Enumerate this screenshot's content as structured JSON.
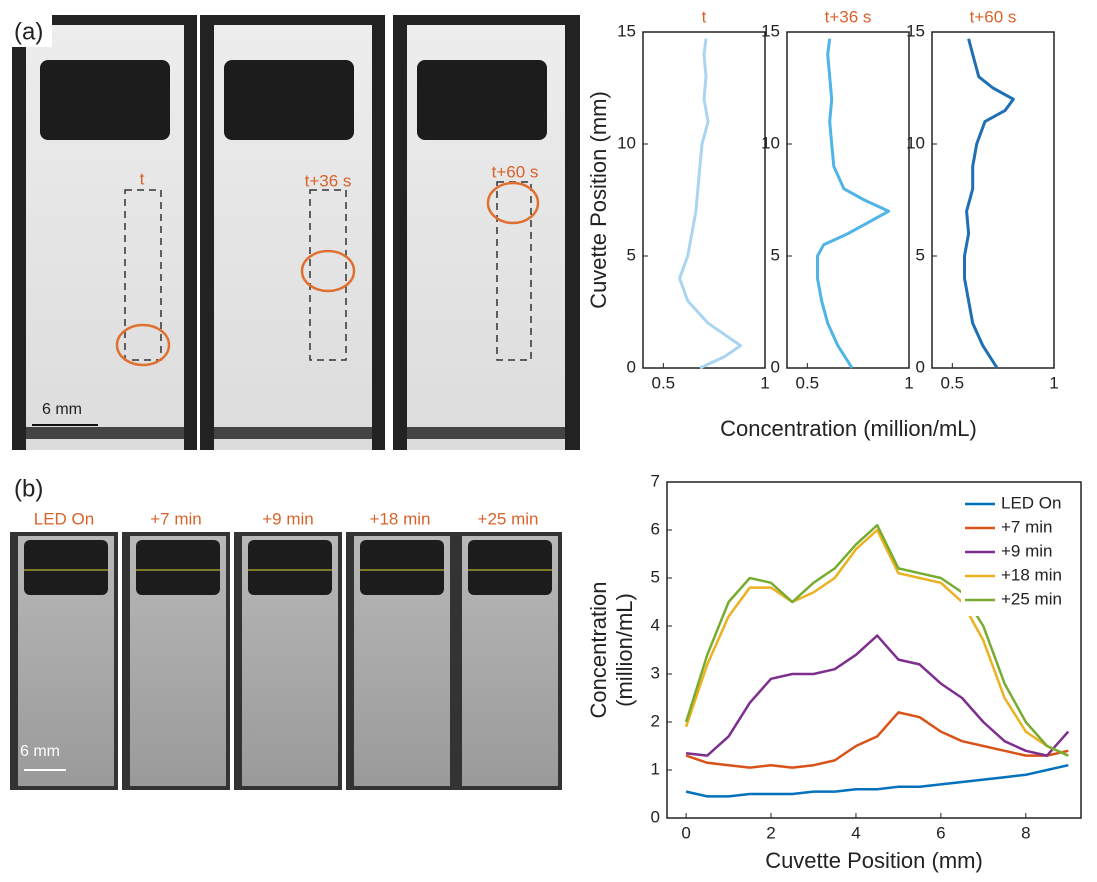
{
  "figure": {
    "panel_labels": [
      "(a)",
      "(b)"
    ],
    "scale_bar": "6 mm"
  },
  "chart_data": [
    {
      "type": "line",
      "orientation": "vertical",
      "title": "t",
      "color": "#a9d5f1",
      "xlabel": "Concentration (million/mL)",
      "ylabel": "Cuvette Position (mm)",
      "positions": [
        0,
        0.5,
        1,
        1.5,
        2,
        3,
        4,
        5,
        6,
        7,
        8,
        9,
        10,
        11,
        12,
        13,
        14,
        14.7
      ],
      "values": [
        0.68,
        0.8,
        0.88,
        0.8,
        0.72,
        0.62,
        0.58,
        0.62,
        0.64,
        0.66,
        0.67,
        0.68,
        0.69,
        0.72,
        0.7,
        0.71,
        0.7,
        0.71
      ],
      "xlim": [
        0.4,
        1
      ],
      "xticks": [
        0.5,
        1
      ],
      "ylim": [
        0,
        15
      ],
      "yticks": [
        0,
        5,
        10,
        15
      ]
    },
    {
      "type": "line",
      "orientation": "vertical",
      "title": "t+36 s",
      "color": "#4fb4e6",
      "positions": [
        0,
        1,
        2,
        3,
        4,
        5,
        5.5,
        6,
        6.5,
        7,
        7.5,
        8,
        9,
        10,
        11,
        12,
        13,
        14,
        14.7
      ],
      "values": [
        0.72,
        0.65,
        0.6,
        0.57,
        0.55,
        0.55,
        0.58,
        0.7,
        0.8,
        0.9,
        0.78,
        0.68,
        0.63,
        0.62,
        0.61,
        0.62,
        0.61,
        0.6,
        0.61
      ],
      "xlim": [
        0.4,
        1
      ],
      "xticks": [
        0.5,
        1
      ],
      "ylim": [
        0,
        15
      ],
      "yticks": [
        0,
        5,
        10,
        15
      ]
    },
    {
      "type": "line",
      "orientation": "vertical",
      "title": "t+60 s",
      "color": "#1f6fb5",
      "positions": [
        0,
        1,
        2,
        3,
        4,
        5,
        6,
        7,
        8,
        9,
        10,
        11,
        11.5,
        12,
        12.5,
        13,
        14,
        14.7
      ],
      "values": [
        0.72,
        0.65,
        0.6,
        0.58,
        0.56,
        0.56,
        0.58,
        0.57,
        0.6,
        0.6,
        0.62,
        0.66,
        0.76,
        0.8,
        0.7,
        0.63,
        0.6,
        0.58
      ],
      "xlim": [
        0.4,
        1
      ],
      "xticks": [
        0.5,
        1
      ],
      "ylim": [
        0,
        15
      ],
      "yticks": [
        0,
        5,
        10,
        15
      ]
    },
    {
      "type": "line",
      "xlabel": "Cuvette Position (mm)",
      "ylabel": [
        "Concentration",
        "(million/mL)"
      ],
      "x": [
        0,
        0.5,
        1,
        1.5,
        2,
        2.5,
        3,
        3.5,
        4,
        4.5,
        5,
        5.5,
        6,
        6.5,
        7,
        7.5,
        8,
        8.5,
        9
      ],
      "series": [
        {
          "name": "LED On",
          "color": "#0072bd",
          "values": [
            0.55,
            0.45,
            0.45,
            0.5,
            0.5,
            0.5,
            0.55,
            0.55,
            0.6,
            0.6,
            0.65,
            0.65,
            0.7,
            0.75,
            0.8,
            0.85,
            0.9,
            1.0,
            1.1
          ]
        },
        {
          "name": "+7 min",
          "color": "#d95319",
          "values": [
            1.3,
            1.15,
            1.1,
            1.05,
            1.1,
            1.05,
            1.1,
            1.2,
            1.5,
            1.7,
            2.2,
            2.1,
            1.8,
            1.6,
            1.5,
            1.4,
            1.3,
            1.3,
            1.4
          ]
        },
        {
          "name": "+9 min",
          "color": "#7e2f8e",
          "values": [
            1.35,
            1.3,
            1.7,
            2.4,
            2.9,
            3.0,
            3.0,
            3.1,
            3.4,
            3.8,
            3.3,
            3.2,
            2.8,
            2.5,
            2.0,
            1.6,
            1.4,
            1.3,
            1.8
          ]
        },
        {
          "name": "+18 min",
          "color": "#edb120",
          "values": [
            1.9,
            3.2,
            4.2,
            4.8,
            4.8,
            4.5,
            4.7,
            5.0,
            5.6,
            6.0,
            5.1,
            5.0,
            4.9,
            4.5,
            3.7,
            2.5,
            1.8,
            1.5,
            1.3
          ]
        },
        {
          "name": "+25 min",
          "color": "#77ac30",
          "values": [
            2.0,
            3.4,
            4.5,
            5.0,
            4.9,
            4.5,
            4.9,
            5.2,
            5.7,
            6.1,
            5.2,
            5.1,
            5.0,
            4.7,
            4.0,
            2.8,
            2.0,
            1.5,
            1.3
          ]
        }
      ],
      "xlim": [
        -0.45,
        9.3
      ],
      "xticks": [
        0,
        2,
        4,
        6,
        8
      ],
      "ylim": [
        0,
        7
      ],
      "yticks": [
        0,
        1,
        2,
        3,
        4,
        5,
        6,
        7
      ],
      "legend": "upper right"
    }
  ]
}
